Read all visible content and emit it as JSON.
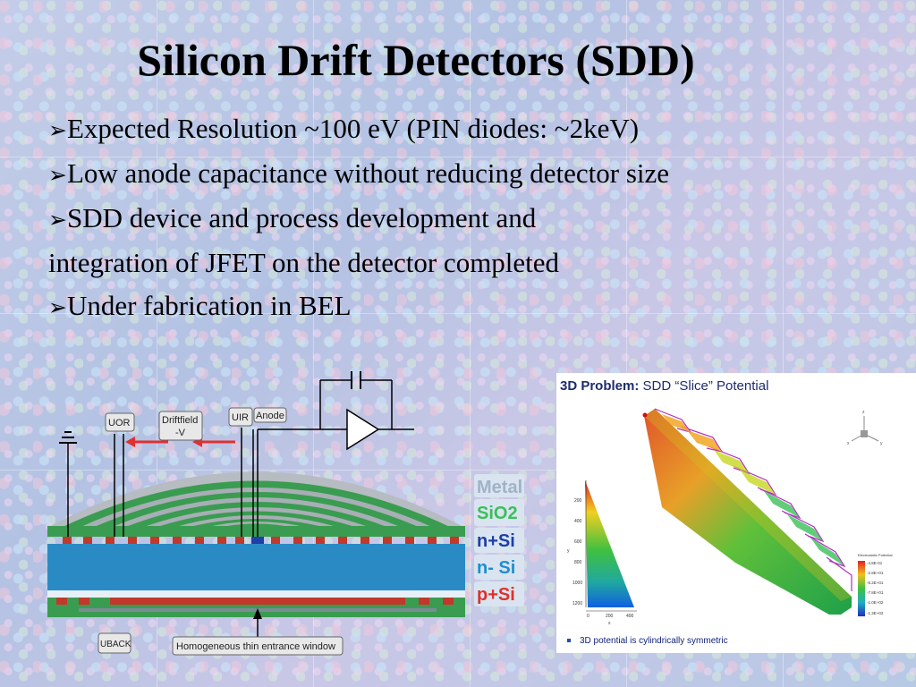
{
  "title": "Silicon Drift Detectors (SDD)",
  "bullets": [
    {
      "marker": "➢",
      "text": "Expected Resolution  ~100 eV (PIN diodes: ~2keV)"
    },
    {
      "marker": "➢",
      "text": "Low anode capacitance without reducing detector size"
    },
    {
      "marker": "➢",
      "text": "SDD  device and process development  and"
    },
    {
      "marker": "",
      "text": "integration  of JFET on the detector completed"
    },
    {
      "marker": "➢",
      "text": "Under fabrication in BEL"
    }
  ],
  "diagram": {
    "labels": {
      "u_or": "UOR",
      "driftfield": "Driftfield",
      "minus_v": "-V",
      "u_ir": "UIR",
      "anode": "Anode",
      "u_back": "UBACK",
      "entrance_window": "Homogeneous thin entrance window"
    },
    "legend": [
      {
        "text": "Metal",
        "color": "#c9d7e8"
      },
      {
        "text": "SiO2",
        "color": "#3bbf5a"
      },
      {
        "text": "n+Si",
        "color": "#1d3fa8"
      },
      {
        "text": "n- Si",
        "color": "#1c8fd0"
      },
      {
        "text": "p+Si",
        "color": "#e0302b"
      }
    ]
  },
  "simulation": {
    "title_bold": "3D Problem:",
    "title_rest": " SDD “Slice” Potential",
    "footer": "3D potential is cylindrically symmetric",
    "colorbar_title": "Electrostatic Potential",
    "colorbar_values": [
      "-4.8E-01",
      "-2.8E+01",
      "-5.2E+01",
      "-7.8E+01",
      "-1.0E+02",
      "-1.3E+02"
    ],
    "inset_y_ticks": [
      "200",
      "400",
      "600",
      "800",
      "1000",
      "1200"
    ],
    "inset_x_ticks": [
      "0",
      "200",
      "400"
    ],
    "inset_y_label": "y",
    "inset_x_label": "x",
    "axis_labels": [
      "z",
      "x",
      "y"
    ]
  }
}
